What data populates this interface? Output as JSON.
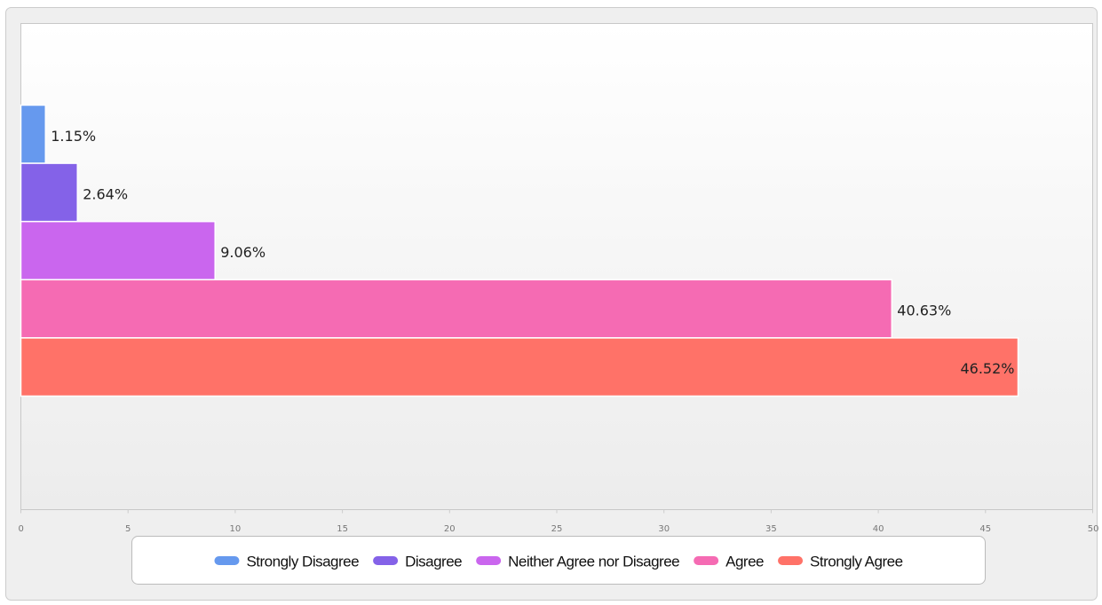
{
  "chart_data": {
    "type": "bar",
    "orientation": "horizontal",
    "series": [
      {
        "name": "Strongly Disagree",
        "color": "#6699ee",
        "values": [
          1.15
        ],
        "value_labels": [
          "1.15%"
        ]
      },
      {
        "name": "Disagree",
        "color": "#8462e8",
        "values": [
          2.64
        ],
        "value_labels": [
          "2.64%"
        ]
      },
      {
        "name": "Neither Agree nor Disagree",
        "color": "#ca66ee",
        "values": [
          9.06
        ],
        "value_labels": [
          "9.06%"
        ]
      },
      {
        "name": "Agree",
        "color": "#f56bb3",
        "values": [
          40.63
        ],
        "value_labels": [
          "40.63%"
        ]
      },
      {
        "name": "Strongly Agree",
        "color": "#ff7268",
        "values": [
          46.52
        ],
        "value_labels": [
          "46.52%"
        ]
      }
    ],
    "xlim": [
      0,
      50
    ],
    "xticks": [
      0,
      5,
      10,
      15,
      20,
      25,
      30,
      35,
      40,
      45,
      50
    ],
    "legend": "bottom"
  }
}
